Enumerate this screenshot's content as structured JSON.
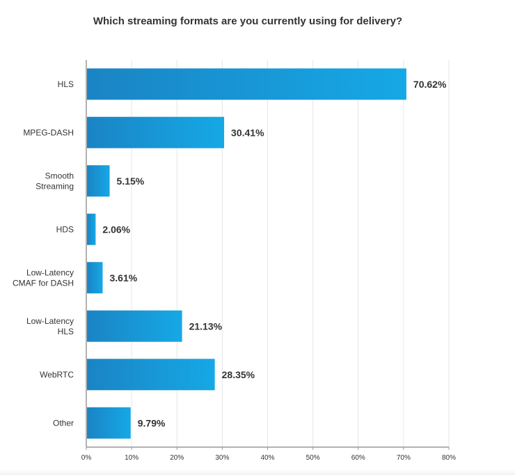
{
  "chart_data": {
    "type": "bar",
    "orientation": "horizontal",
    "title": "Which streaming formats are you currently using for delivery?",
    "categories": [
      [
        "HLS"
      ],
      [
        "MPEG-DASH"
      ],
      [
        "Smooth",
        "Streaming"
      ],
      [
        "HDS"
      ],
      [
        "Low-Latency",
        "CMAF for DASH"
      ],
      [
        "Low-Latency",
        "HLS"
      ],
      [
        "WebRTC"
      ],
      [
        "Other"
      ]
    ],
    "values": [
      70.62,
      30.41,
      5.15,
      2.06,
      3.61,
      21.13,
      28.35,
      9.79
    ],
    "value_labels": [
      "70.62%",
      "30.41%",
      "5.15%",
      "2.06%",
      "3.61%",
      "21.13%",
      "28.35%",
      "9.79%"
    ],
    "xlim": [
      0,
      80
    ],
    "x_ticks": [
      0,
      10,
      20,
      30,
      40,
      50,
      60,
      70,
      80
    ],
    "x_tick_labels": [
      "0%",
      "10%",
      "20%",
      "30%",
      "40%",
      "50%",
      "60%",
      "70%",
      "80%"
    ],
    "grid": "vertical",
    "colors": {
      "bar_start": "#1a84c4",
      "bar_end": "#16a8e6",
      "grid": "#e6e6e6",
      "axis": "#999999"
    }
  }
}
